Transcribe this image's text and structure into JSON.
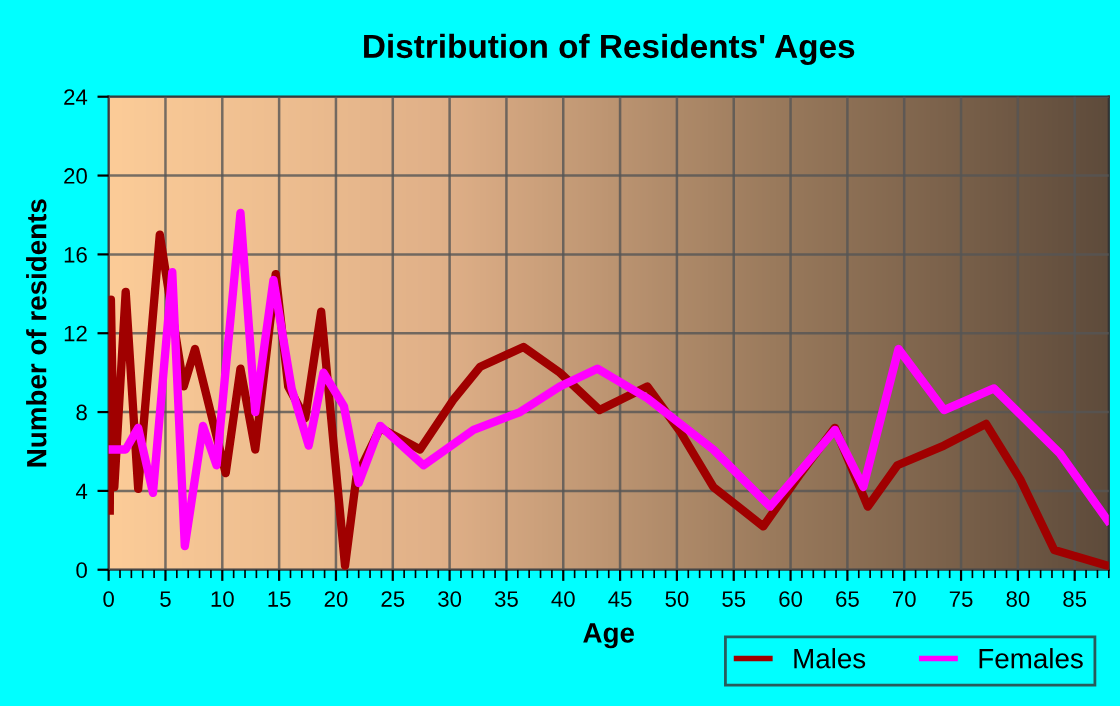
{
  "chart_data": {
    "type": "line",
    "title": "Distribution of Residents' Ages",
    "xlabel": "Age",
    "ylabel": "Number of residents",
    "xlim": [
      0,
      88
    ],
    "xticks": [
      0,
      5,
      10,
      15,
      20,
      25,
      30,
      35,
      40,
      45,
      50,
      55,
      60,
      65,
      70,
      75,
      80,
      85
    ],
    "ylim": [
      0,
      24
    ],
    "yticks": [
      0,
      4,
      8,
      12,
      16,
      20,
      24
    ],
    "grid": true,
    "legend": "bottom right",
    "marker": "none",
    "line_style": "solid",
    "series": [
      {
        "name": "Males",
        "color": "#a00000",
        "x": [
          0.1,
          0.2,
          0.5,
          1.5,
          2.6,
          4.5,
          6.6,
          7.6,
          10.3,
          11.6,
          12.9,
          14.7,
          15.8,
          17.3,
          18.7,
          20.8,
          21.8,
          23.9,
          27.4,
          30.3,
          32.7,
          36.5,
          39.7,
          43.2,
          47.4,
          50.3,
          53.2,
          57.6,
          60.9,
          63.9,
          66.8,
          69.4,
          73.5,
          77.2,
          80.2,
          83.2,
          87.9
        ],
        "values": [
          3.0,
          13.7,
          4.2,
          14.1,
          4.1,
          17.0,
          9.3,
          11.2,
          4.9,
          10.2,
          6.1,
          15.0,
          9.3,
          7.7,
          13.1,
          0.2,
          4.7,
          7.2,
          6.1,
          8.6,
          10.3,
          11.3,
          10.0,
          8.1,
          9.3,
          7.0,
          4.2,
          2.2,
          4.9,
          7.2,
          3.2,
          5.3,
          6.3,
          7.4,
          4.6,
          1.0,
          0.2
        ]
      },
      {
        "name": "Females",
        "color": "#ff00ff",
        "x": [
          0.1,
          1.5,
          2.6,
          3.9,
          5.6,
          6.7,
          8.3,
          9.5,
          11.6,
          12.9,
          14.5,
          16.1,
          17.6,
          18.9,
          20.7,
          22.0,
          23.9,
          27.7,
          32.1,
          36.2,
          39.7,
          43.0,
          47.4,
          53.2,
          58.2,
          61.3,
          63.9,
          66.4,
          69.5,
          73.5,
          77.9,
          83.7,
          87.9
        ],
        "values": [
          6.1,
          6.1,
          7.2,
          3.9,
          15.1,
          1.2,
          7.3,
          5.3,
          18.1,
          8.0,
          14.7,
          9.2,
          6.3,
          10.0,
          8.3,
          4.4,
          7.3,
          5.3,
          7.1,
          8.0,
          9.3,
          10.2,
          8.7,
          6.1,
          3.2,
          5.3,
          7.1,
          4.2,
          11.2,
          8.1,
          9.2,
          5.9,
          2.5
        ]
      }
    ]
  }
}
